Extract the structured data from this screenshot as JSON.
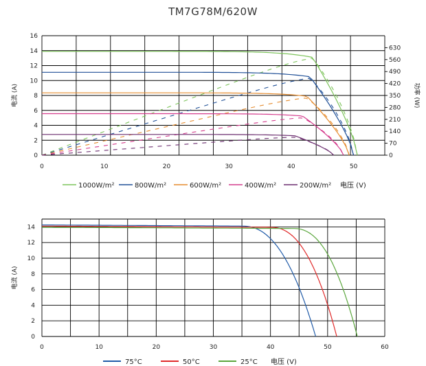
{
  "title": "TM7G78M/620W",
  "chart_data": [
    {
      "type": "line",
      "title": "TM7G78M/620W",
      "xlabel": "电压 (V)",
      "ylabel": "电流 (A)",
      "y2label": "功率 (W)",
      "xlim": [
        0,
        55
      ],
      "ylim": [
        0,
        16
      ],
      "y2lim": [
        0,
        700
      ],
      "grid": true,
      "legend": "bottom",
      "x_ticks": [
        "0",
        "10",
        "20",
        "30",
        "40",
        "50"
      ],
      "y_ticks": [
        "0",
        "2",
        "4",
        "6",
        "8",
        "10",
        "12",
        "14",
        "16"
      ],
      "y2_ticks": [
        "0",
        "70",
        "140",
        "210",
        "280",
        "350",
        "420",
        "490",
        "560",
        "630"
      ],
      "series": [
        {
          "name": "1000W/m²",
          "color": "#7cc35a",
          "isc": 13.9,
          "imp": 13.1,
          "vmp": 43.4,
          "voc": 50.6
        },
        {
          "name": "800W/m²",
          "color": "#1f4f96",
          "isc": 11.1,
          "imp": 10.5,
          "vmp": 43.0,
          "voc": 50.0
        },
        {
          "name": "600W/m²",
          "color": "#e58a2b",
          "isc": 8.35,
          "imp": 7.9,
          "vmp": 42.5,
          "voc": 49.3
        },
        {
          "name": "400W/m²",
          "color": "#d43b8c",
          "isc": 5.56,
          "imp": 5.25,
          "vmp": 41.8,
          "voc": 48.4
        },
        {
          "name": "200W/m²",
          "color": "#6a2c6e",
          "isc": 2.78,
          "imp": 2.6,
          "vmp": 40.6,
          "voc": 46.8
        }
      ]
    },
    {
      "type": "line",
      "xlabel": "电压 (V)",
      "ylabel": "电流 (A)",
      "xlim": [
        0,
        60
      ],
      "ylim": [
        0,
        15
      ],
      "grid": true,
      "legend": "bottom",
      "x_ticks": [
        "0",
        "10",
        "20",
        "30",
        "40",
        "50",
        "60"
      ],
      "y_ticks": [
        "0",
        "2",
        "4",
        "6",
        "8",
        "10",
        "12",
        "14"
      ],
      "series": [
        {
          "name": "75°C",
          "color": "#1f5aa8",
          "isc": 14.25,
          "vknee": 35,
          "voc": 47.9
        },
        {
          "name": "50°C",
          "color": "#e02a2a",
          "isc": 14.1,
          "vknee": 40,
          "voc": 51.6
        },
        {
          "name": "25°C",
          "color": "#5aa63c",
          "isc": 13.95,
          "vknee": 44,
          "voc": 55.2
        }
      ]
    }
  ]
}
